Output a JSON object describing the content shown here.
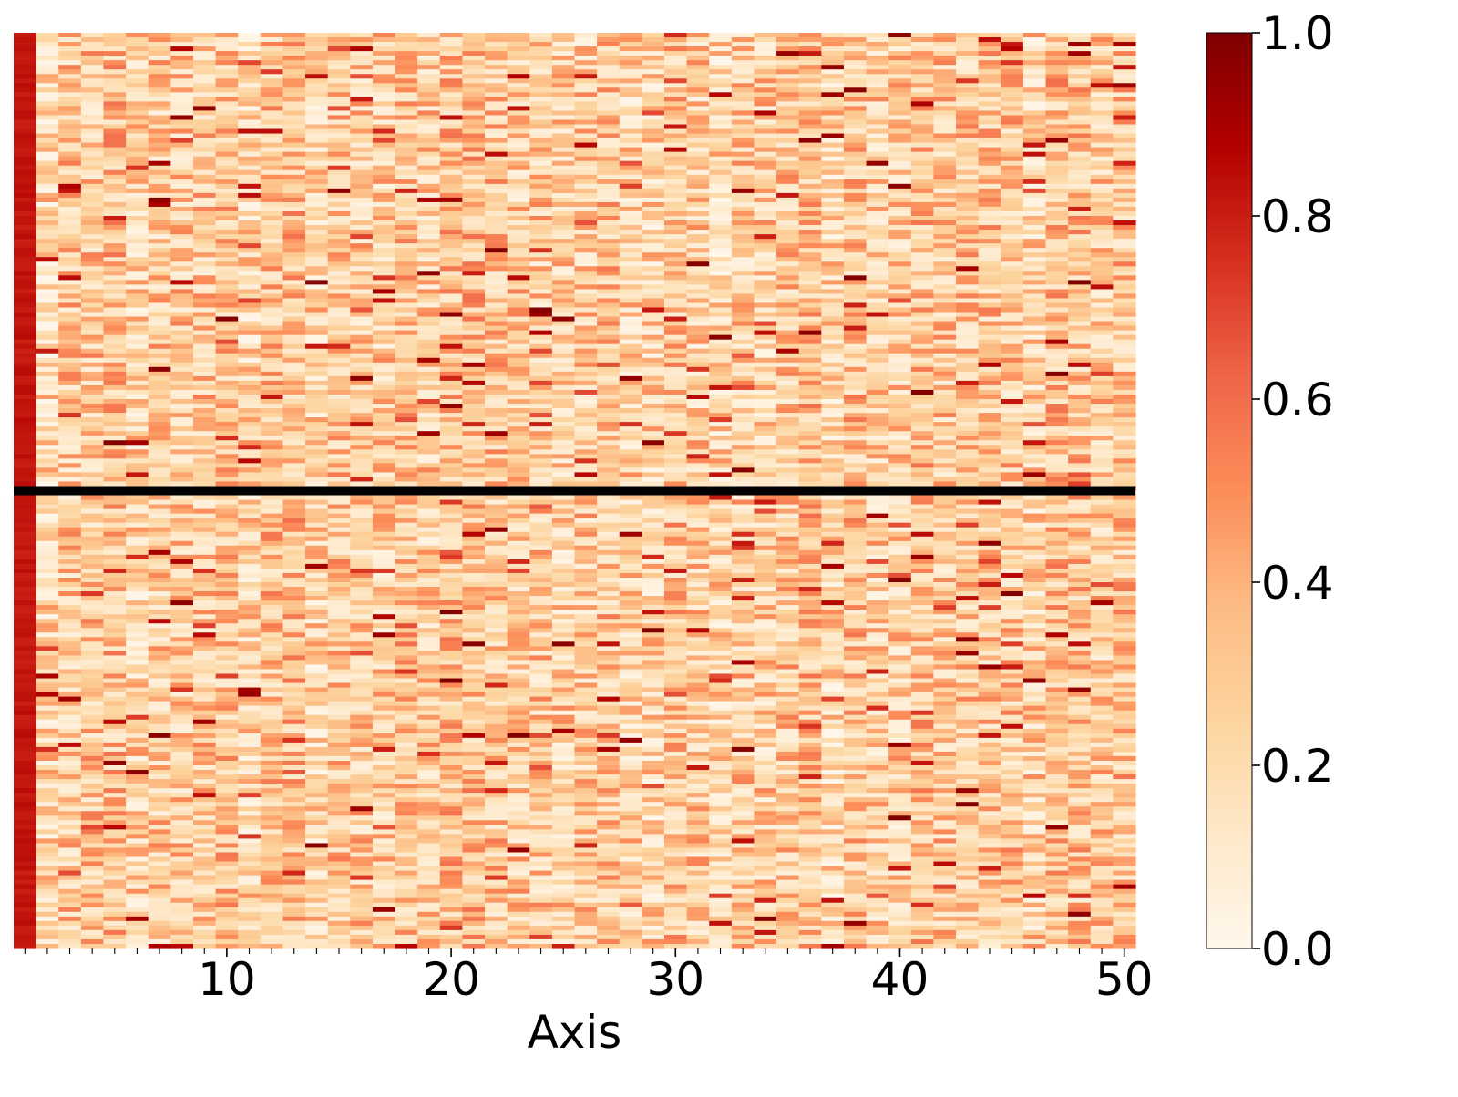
{
  "chart_data": {
    "type": "heatmap",
    "title": "",
    "xlabel": "Axis",
    "ylabel": "",
    "x_columns": 50,
    "x_ticks": [
      10,
      20,
      30,
      40,
      50
    ],
    "x_tick_labels": [
      "10",
      "20",
      "30",
      "40",
      "50"
    ],
    "colorbar": {
      "colormap": "OrRd",
      "min": 0.0,
      "max": 1.0,
      "ticks": [
        0.0,
        0.2,
        0.4,
        0.6,
        0.8,
        1.0
      ],
      "tick_labels": [
        "0.0",
        "0.2",
        "0.4",
        "0.6",
        "0.8",
        "1.0"
      ],
      "stops": [
        "#fff7ec",
        "#fee8c8",
        "#fdd49e",
        "#fdbb84",
        "#fc8d59",
        "#ef6548",
        "#d7301f",
        "#b30000",
        "#7f0000"
      ]
    },
    "first_column_value": 0.82,
    "typical_value_range": [
      0.0,
      0.55
    ],
    "occasional_high_values": [
      0.65,
      1.0
    ],
    "separator_row_fraction": 0.5,
    "separator_color": "#000000",
    "grid": false,
    "legend": "colorbar-right"
  }
}
